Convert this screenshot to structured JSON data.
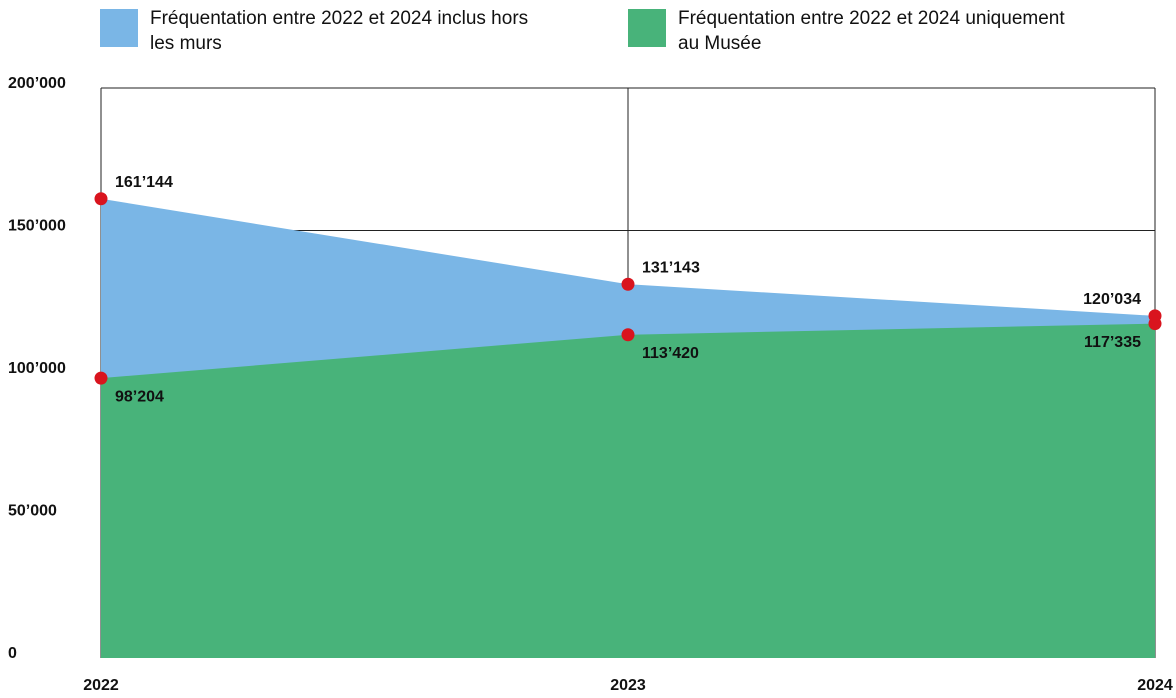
{
  "chart_data": {
    "type": "area",
    "x": [
      2022,
      2023,
      2024
    ],
    "xlim": [
      2022,
      2024
    ],
    "series": [
      {
        "name": "Fréquentation entre 2022 et 2024 inclus hors les murs",
        "color": "#7ab6e6",
        "values": [
          161144,
          131143,
          120034
        ],
        "value_labels": [
          "161’144",
          "131’143",
          "120’034"
        ]
      },
      {
        "name": "Fréquentation entre 2022 et 2024 uniquement au Musée",
        "color": "#48b37a",
        "values": [
          98204,
          113420,
          117335
        ],
        "value_labels": [
          "98’204",
          "113’420",
          "117’335"
        ]
      }
    ],
    "marker_color": "#d9141e",
    "ylim": [
      0,
      200000
    ],
    "yticks": [
      0,
      {
        "value": 50000,
        "label": "50’000"
      },
      {
        "value": 100000,
        "label": "100’000"
      },
      {
        "value": 150000,
        "label": "150’000"
      },
      {
        "value": 200000,
        "label": "200’000"
      }
    ],
    "grid": true
  }
}
